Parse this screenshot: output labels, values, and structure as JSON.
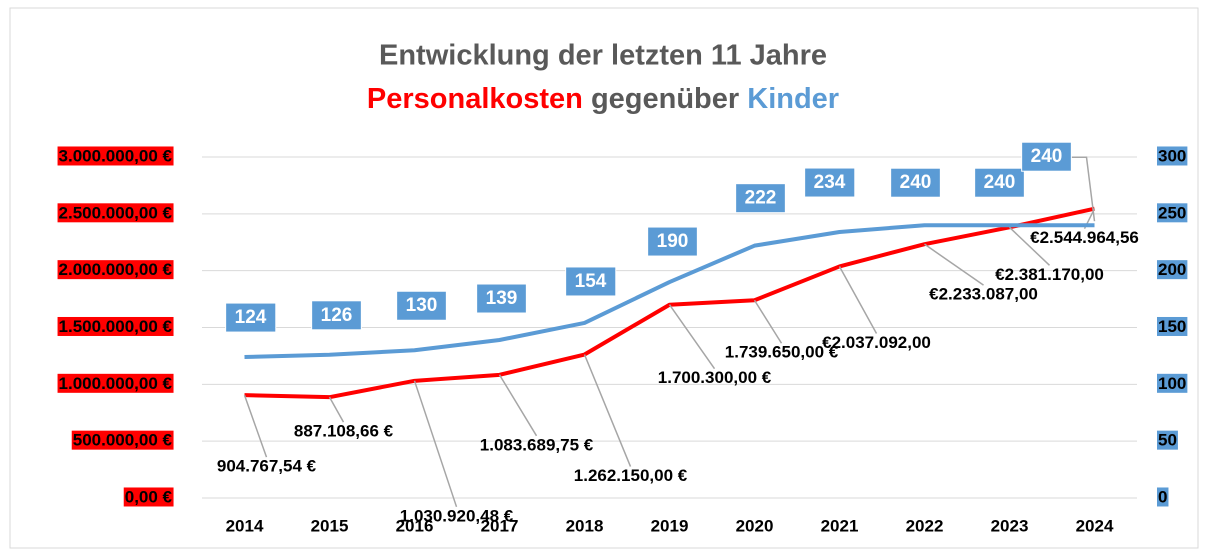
{
  "chart_data": {
    "type": "line",
    "title": "Entwicklung der letzten 11 Jahre",
    "subtitle": "gegenüber",
    "categories": [
      "2014",
      "2015",
      "2016",
      "2017",
      "2018",
      "2019",
      "2020",
      "2021",
      "2022",
      "2023",
      "2024"
    ],
    "series": [
      {
        "name": "Personalkosten",
        "color": "#ff0000",
        "values": [
          904767.54,
          887108.66,
          1030920.48,
          1083689.75,
          1262150.0,
          1700300.0,
          1739650.0,
          2037092.0,
          2233087.0,
          2381170.0,
          2544964.56
        ],
        "value_labels": [
          "904.767,54 €",
          "887.108,66 €",
          "1.030.920,48 €",
          "1.083.689,75 €",
          "1.262.150,00 €",
          "1.700.300,00 €",
          "1.739.650,00 €",
          "€2.037.092,00",
          "€2.233.087,00",
          "€2.381.170,00",
          "€2.544.964,56"
        ]
      },
      {
        "name": "Kinder",
        "color": "#5b9bd5",
        "axis": "y2",
        "values": [
          124,
          126,
          130,
          139,
          154,
          190,
          222,
          234,
          240,
          240,
          240
        ]
      }
    ],
    "ylim": [
      0,
      3000000
    ],
    "yticks": [
      {
        "value": 0,
        "label": "0,00 €"
      },
      {
        "value": 500000,
        "label": "500.000,00 €"
      },
      {
        "value": 1000000,
        "label": "1.000.000,00 €"
      },
      {
        "value": 1500000,
        "label": "1.500.000,00 €"
      },
      {
        "value": 2000000,
        "label": "2.000.000,00 €"
      },
      {
        "value": 2500000,
        "label": "2.500.000,00 €"
      },
      {
        "value": 3000000,
        "label": "3.000.000,00 €"
      }
    ],
    "y2lim": [
      0,
      300
    ],
    "y2ticks": [
      0,
      50,
      100,
      150,
      200,
      250,
      300
    ],
    "grid": true
  }
}
